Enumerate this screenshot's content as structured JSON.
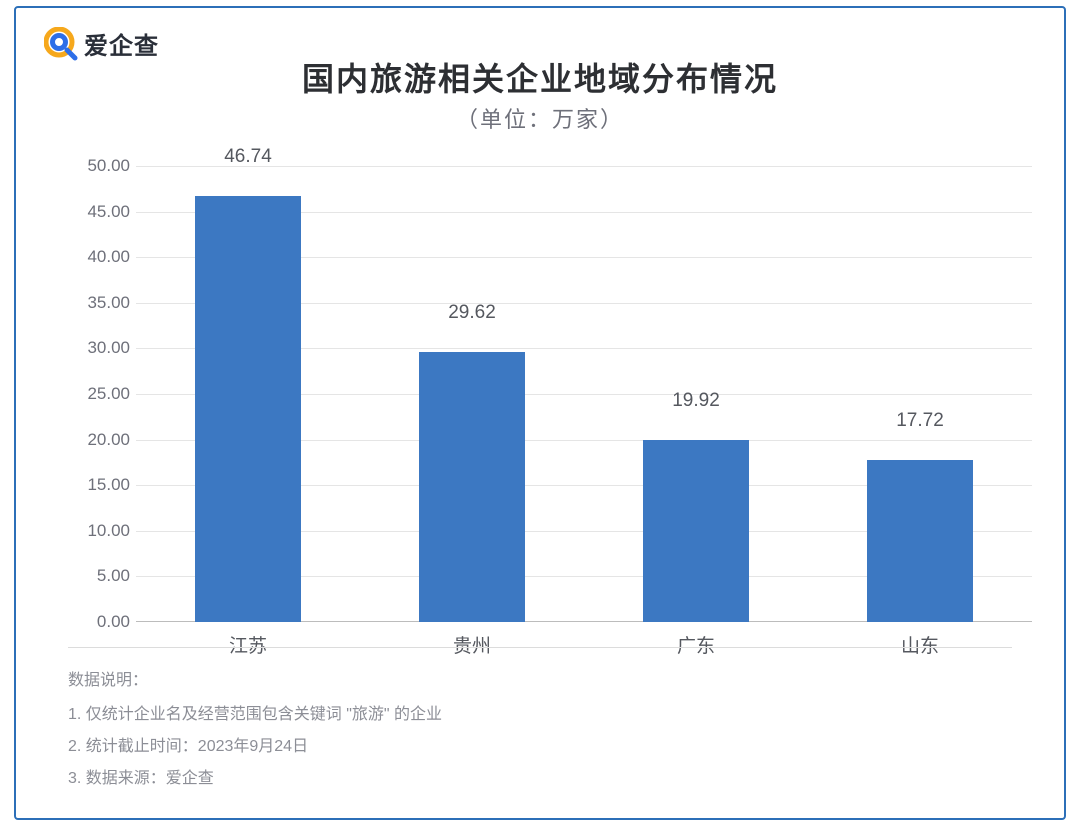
{
  "brand": {
    "name": "爱企查",
    "icon_outer_color": "#f6a81c",
    "icon_inner_color": "#2d6ee8"
  },
  "chart": {
    "type": "bar",
    "title": "国内旅游相关企业地域分布情况",
    "subtitle": "（单位：万家）",
    "categories": [
      "江苏",
      "贵州",
      "广东",
      "山东"
    ],
    "values": [
      46.74,
      29.62,
      19.92,
      17.72
    ],
    "value_labels": [
      "46.74",
      "29.62",
      "19.92",
      "17.72"
    ],
    "bar_color": "#3c78c2",
    "background_color": "#ffffff",
    "grid_color": "#e5e5e5",
    "axis_line_color": "#bcbcbc",
    "ylim": [
      0,
      50
    ],
    "ytick_step": 5,
    "yticks": [
      "0.00",
      "5.00",
      "10.00",
      "15.00",
      "20.00",
      "25.00",
      "30.00",
      "35.00",
      "40.00",
      "45.00",
      "50.00"
    ],
    "bar_width_ratio": 0.47,
    "title_fontsize": 32,
    "subtitle_fontsize": 22,
    "label_fontsize": 19,
    "tick_fontsize": 17,
    "text_color_title": "#2d2f33",
    "text_color_sub": "#6e707a",
    "text_color_label": "#55585f"
  },
  "notes": {
    "heading": "数据说明：",
    "items": [
      "1. 仅统计企业名及经营范围包含关键词 \"旅游\" 的企业",
      "2. 统计截止时间：2023年9月24日",
      "3. 数据来源：爱企查"
    ]
  },
  "frame": {
    "border_color": "#2c6fb8"
  }
}
